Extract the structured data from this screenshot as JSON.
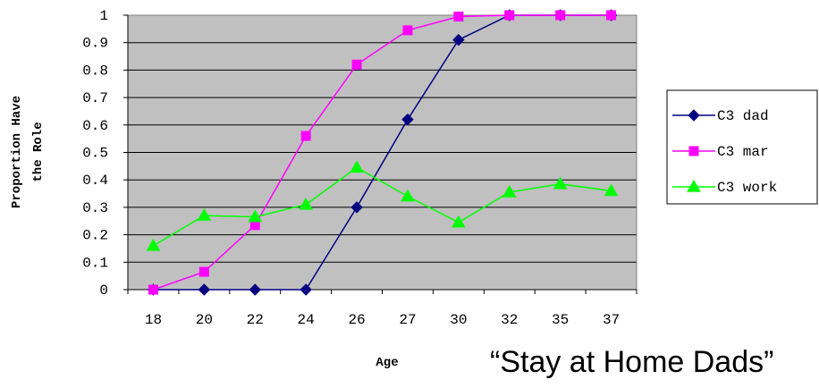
{
  "caption": "“Stay at Home Dads”",
  "chart_data": {
    "type": "line",
    "title": "",
    "xlabel": "Age",
    "ylabel": "Proportion Have the Role",
    "ylabel_lines": [
      "Proportion Have",
      "the Role"
    ],
    "categories": [
      "18",
      "20",
      "22",
      "24",
      "26",
      "27",
      "30",
      "32",
      "35",
      "37"
    ],
    "ylim": [
      0,
      1
    ],
    "yticks": [
      "0",
      "0.1",
      "0.2",
      "0.3",
      "0.4",
      "0.5",
      "0.6",
      "0.7",
      "0.8",
      "0.9",
      "1"
    ],
    "grid": true,
    "plot_background": "#c0c0c0",
    "legend_position": "right",
    "series": [
      {
        "name": "C3 dad",
        "color": "#000080",
        "marker": "diamond",
        "values": [
          0,
          0,
          0,
          0,
          0.3,
          0.62,
          0.91,
          1.0,
          1.0,
          1.0
        ]
      },
      {
        "name": "C3 mar",
        "color": "#ff00ff",
        "marker": "square",
        "values": [
          0,
          0.065,
          0.235,
          0.56,
          0.82,
          0.945,
          0.995,
          1.0,
          1.0,
          1.0
        ]
      },
      {
        "name": "C3 work",
        "color": "#00ff00",
        "marker": "triangle",
        "values": [
          0.16,
          0.27,
          0.265,
          0.31,
          0.445,
          0.34,
          0.245,
          0.355,
          0.385,
          0.36
        ]
      }
    ]
  }
}
